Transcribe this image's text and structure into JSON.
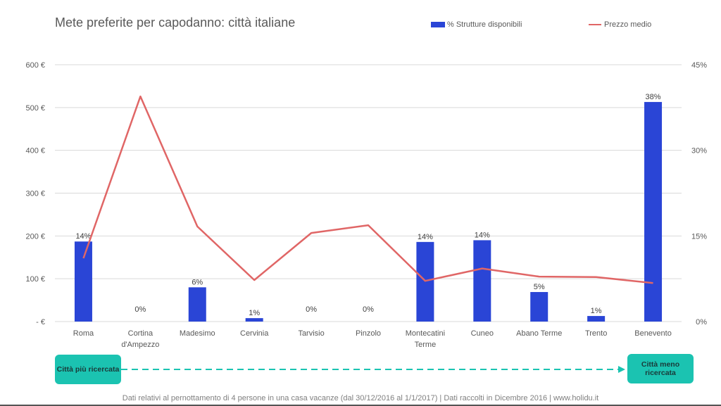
{
  "title": "Mete preferite per capodanno: città italiane",
  "legend": {
    "bar_label": "% Strutture disponibili",
    "line_label": "Prezzo medio"
  },
  "colors": {
    "bar": "#2a45d6",
    "line": "#e06666",
    "grid": "#d9d9d9",
    "arrow": "#1bc3b1"
  },
  "badges": {
    "left": "Città più ricercata",
    "right": "Città meno ricercata"
  },
  "footer": "Dati relativi al pernottamento  di 4 persone  in una casa vacanze (dal 30/12/2016 al 1/1/2017)  | Dati raccolti in Dicembre 2016 | www.holidu.it",
  "chart_data": {
    "type": "bar",
    "title": "Mete preferite per capodanno: città italiane",
    "categories": [
      "Roma",
      "Cortina d'Ampezzo",
      "Madesimo",
      "Cervinia",
      "Tarvisio",
      "Pinzolo",
      "Montecatini Terme",
      "Cuneo",
      "Abano Terme",
      "Trento",
      "Benevento"
    ],
    "category_lines": [
      [
        "Roma"
      ],
      [
        "Cortina",
        "d'Ampezzo"
      ],
      [
        "Madesimo"
      ],
      [
        "Cervinia"
      ],
      [
        "Tarvisio"
      ],
      [
        "Pinzolo"
      ],
      [
        "Montecatini",
        "Terme"
      ],
      [
        "Cuneo"
      ],
      [
        "Abano Terme"
      ],
      [
        "Trento"
      ],
      [
        "Benevento"
      ]
    ],
    "series": [
      {
        "name": "% Strutture disponibili",
        "type": "bar",
        "axis": "right",
        "values": [
          14,
          0,
          6,
          1,
          0,
          0,
          14,
          14,
          5,
          1,
          38
        ],
        "labels": [
          "14%",
          "0%",
          "6%",
          "1%",
          "0%",
          "0%",
          "14%",
          "14%",
          "5%",
          "1%",
          "38%"
        ],
        "bar_height_on_left_axis": [
          187,
          0,
          80,
          8,
          0,
          0,
          186,
          190,
          69,
          13,
          513
        ]
      },
      {
        "name": "Prezzo medio",
        "type": "line",
        "axis": "left",
        "values": [
          148,
          526,
          222,
          97,
          207,
          225,
          95,
          124,
          105,
          104,
          90
        ]
      }
    ],
    "y_left": {
      "ticks": [
        0,
        100,
        200,
        300,
        400,
        500,
        600
      ],
      "tick_labels": [
        "- €",
        "100 €",
        "200 €",
        "300 €",
        "400 €",
        "500 €",
        "600 €"
      ],
      "ylim": [
        0,
        600
      ]
    },
    "y_right": {
      "ticks": [
        0,
        15,
        30,
        45
      ],
      "tick_labels": [
        "0%",
        "15%",
        "30%",
        "45%"
      ],
      "ylim": [
        0,
        45
      ]
    },
    "grid": true,
    "legend_position": "top-right"
  }
}
